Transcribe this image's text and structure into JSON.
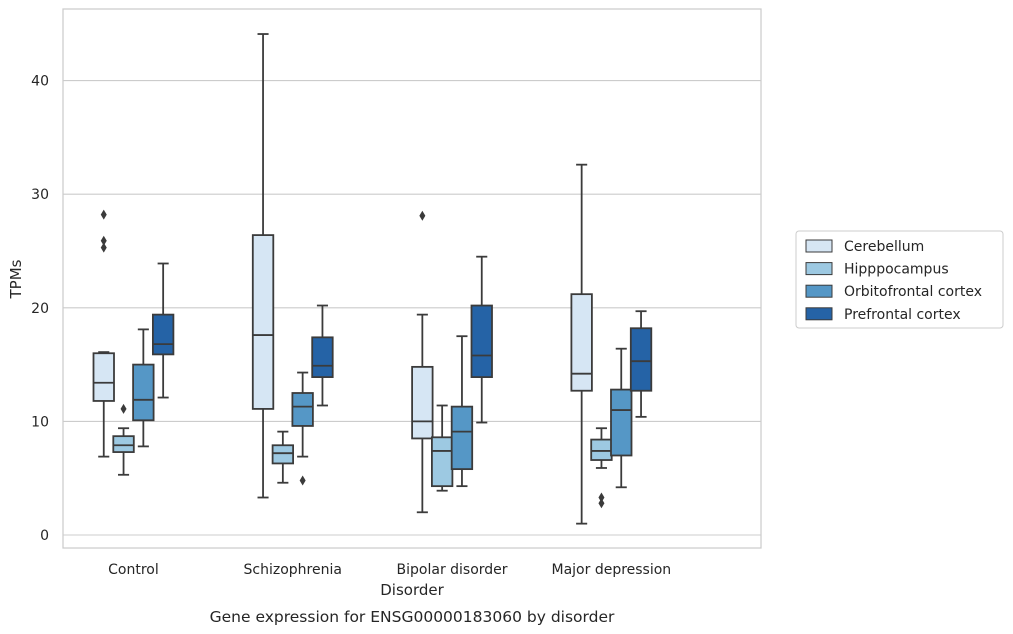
{
  "caption": "Gene expression for ENSG00000183060 by disorder",
  "chart_data": {
    "type": "box",
    "xlabel": "Disorder",
    "ylabel": "TPMs",
    "ylim": [
      -1.1,
      46
    ],
    "yticks": [
      0,
      10,
      20,
      30,
      40
    ],
    "grid": "horizontal",
    "legend_position": "right",
    "categories": [
      "Control",
      "Schizophrenia",
      "Bipolar disorder",
      "Major depression"
    ],
    "series": [
      {
        "name": "Cerebellum",
        "color": "#d6e6f4",
        "boxes": [
          {
            "whisker_low": 6.9,
            "q1": 11.8,
            "median": 13.4,
            "q3": 16.0,
            "whisker_high": 16.1,
            "outliers": [
              25.3,
              25.9,
              28.2
            ]
          },
          {
            "whisker_low": 3.3,
            "q1": 11.1,
            "median": 17.6,
            "q3": 26.4,
            "whisker_high": 44.1,
            "outliers": []
          },
          {
            "whisker_low": 2.0,
            "q1": 8.5,
            "median": 10.0,
            "q3": 14.8,
            "whisker_high": 19.4,
            "outliers": [
              28.1
            ]
          },
          {
            "whisker_low": 1.0,
            "q1": 12.7,
            "median": 14.2,
            "q3": 21.2,
            "whisker_high": 32.6,
            "outliers": []
          }
        ]
      },
      {
        "name": "Hipppocampus",
        "color": "#9dc9e2",
        "boxes": [
          {
            "whisker_low": 5.3,
            "q1": 7.3,
            "median": 7.9,
            "q3": 8.7,
            "whisker_high": 9.4,
            "outliers": [
              11.1
            ]
          },
          {
            "whisker_low": 4.6,
            "q1": 6.3,
            "median": 7.2,
            "q3": 7.9,
            "whisker_high": 9.1,
            "outliers": []
          },
          {
            "whisker_low": 3.9,
            "q1": 4.3,
            "median": 7.4,
            "q3": 8.6,
            "whisker_high": 11.4,
            "outliers": []
          },
          {
            "whisker_low": 5.9,
            "q1": 6.6,
            "median": 7.4,
            "q3": 8.4,
            "whisker_high": 9.4,
            "outliers": [
              2.8,
              3.3
            ]
          }
        ]
      },
      {
        "name": "Orbitofrontal cortex",
        "color": "#5597c6",
        "boxes": [
          {
            "whisker_low": 7.8,
            "q1": 10.1,
            "median": 11.9,
            "q3": 15.0,
            "whisker_high": 18.1,
            "outliers": []
          },
          {
            "whisker_low": 6.9,
            "q1": 9.6,
            "median": 11.3,
            "q3": 12.5,
            "whisker_high": 14.3,
            "outliers": [
              4.8
            ]
          },
          {
            "whisker_low": 4.3,
            "q1": 5.8,
            "median": 9.1,
            "q3": 11.3,
            "whisker_high": 17.5,
            "outliers": []
          },
          {
            "whisker_low": 4.2,
            "q1": 7.0,
            "median": 11.0,
            "q3": 12.8,
            "whisker_high": 16.4,
            "outliers": []
          }
        ]
      },
      {
        "name": "Prefrontal cortex",
        "color": "#2563a6",
        "boxes": [
          {
            "whisker_low": 12.1,
            "q1": 15.9,
            "median": 16.8,
            "q3": 19.4,
            "whisker_high": 23.9,
            "outliers": []
          },
          {
            "whisker_low": 11.4,
            "q1": 13.9,
            "median": 14.9,
            "q3": 17.4,
            "whisker_high": 20.2,
            "outliers": []
          },
          {
            "whisker_low": 9.9,
            "q1": 13.9,
            "median": 15.8,
            "q3": 20.2,
            "whisker_high": 24.5,
            "outliers": []
          },
          {
            "whisker_low": 10.4,
            "q1": 12.7,
            "median": 15.3,
            "q3": 18.2,
            "whisker_high": 19.7,
            "outliers": []
          }
        ]
      }
    ]
  }
}
